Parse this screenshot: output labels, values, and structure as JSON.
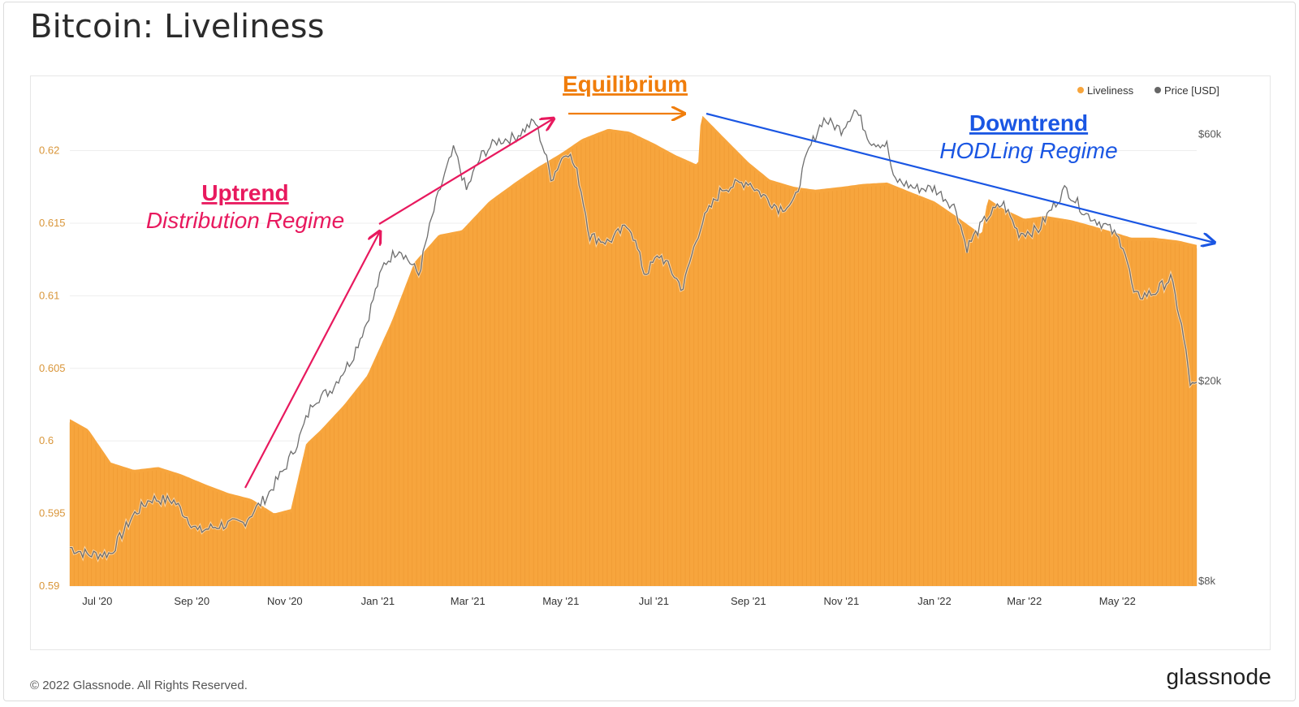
{
  "title": "Bitcoin: Liveliness",
  "footer": "© 2022 Glassnode. All Rights Reserved.",
  "brand": "glassnode",
  "watermark": "glassnode",
  "colors": {
    "liveliness": "#f7a53d",
    "price": "#8c8c8c",
    "uptrend": "#e8195e",
    "equilibrium": "#f07d0b",
    "downtrend": "#1a56e3",
    "left_axis": "#d9963a",
    "right_axis": "#555555"
  },
  "chart_data": {
    "type": "area",
    "x_tick_labels": [
      "Jul '20",
      "Sep '20",
      "Nov '20",
      "Jan '21",
      "Mar '21",
      "May '21",
      "Jul '21",
      "Sep '21",
      "Nov '21",
      "Jan '22",
      "Mar '22",
      "May '22"
    ],
    "left_axis": {
      "ticks": [
        "0.59",
        "0.595",
        "0.6",
        "0.605",
        "0.61",
        "0.615",
        "0.62"
      ],
      "range": [
        0.59,
        0.624
      ]
    },
    "right_axis": {
      "ticks": [
        "$8k",
        "$20k",
        "$60k"
      ],
      "scale": "log",
      "range": [
        8000,
        72000
      ]
    },
    "legend": {
      "position": "top-right",
      "items": [
        "Liveliness",
        "Price [USD]"
      ]
    },
    "annotations": {
      "uptrend": {
        "title": "Uptrend",
        "subtitle": "Distribution Regime"
      },
      "equilibrium": {
        "title": "Equilibrium"
      },
      "downtrend": {
        "title": "Downtrend",
        "subtitle": "HODLing Regime"
      }
    },
    "series": [
      {
        "name": "Liveliness",
        "x": [
          "2020-06-13",
          "2020-06-25",
          "2020-07-10",
          "2020-07-25",
          "2020-08-10",
          "2020-08-25",
          "2020-09-10",
          "2020-09-25",
          "2020-10-10",
          "2020-10-25",
          "2020-11-05",
          "2020-11-15",
          "2020-11-25",
          "2020-12-10",
          "2020-12-25",
          "2021-01-10",
          "2021-01-25",
          "2021-02-10",
          "2021-02-25",
          "2021-03-15",
          "2021-04-01",
          "2021-04-15",
          "2021-05-01",
          "2021-05-15",
          "2021-06-01",
          "2021-06-15",
          "2021-07-01",
          "2021-07-15",
          "2021-07-30",
          "2021-08-01",
          "2021-08-15",
          "2021-09-01",
          "2021-09-15",
          "2021-10-01",
          "2021-10-15",
          "2021-11-01",
          "2021-11-15",
          "2021-12-01",
          "2021-12-15",
          "2022-01-01",
          "2022-01-15",
          "2022-02-01",
          "2022-02-05",
          "2022-02-15",
          "2022-03-01",
          "2022-03-15",
          "2022-04-01",
          "2022-04-15",
          "2022-05-01",
          "2022-05-10",
          "2022-05-25",
          "2022-06-10",
          "2022-06-22"
        ],
        "values": [
          0.6015,
          0.6008,
          0.5985,
          0.598,
          0.5982,
          0.5977,
          0.597,
          0.5964,
          0.596,
          0.595,
          0.5953,
          0.5998,
          0.6008,
          0.6025,
          0.6045,
          0.6082,
          0.6123,
          0.6142,
          0.6145,
          0.6165,
          0.6178,
          0.6188,
          0.6198,
          0.6208,
          0.6215,
          0.6213,
          0.6205,
          0.6197,
          0.619,
          0.6225,
          0.621,
          0.6192,
          0.618,
          0.6175,
          0.6173,
          0.6175,
          0.6177,
          0.6178,
          0.6172,
          0.6165,
          0.6155,
          0.6142,
          0.6167,
          0.616,
          0.6153,
          0.6155,
          0.6152,
          0.6148,
          0.6143,
          0.614,
          0.614,
          0.6138,
          0.6135
        ]
      },
      {
        "name": "Price [USD]",
        "x": [
          "2020-06-13",
          "2020-06-25",
          "2020-07-10",
          "2020-07-25",
          "2020-08-05",
          "2020-08-20",
          "2020-09-05",
          "2020-09-20",
          "2020-10-05",
          "2020-10-20",
          "2020-11-01",
          "2020-11-10",
          "2020-11-20",
          "2020-12-01",
          "2020-12-15",
          "2020-12-25",
          "2021-01-05",
          "2021-01-15",
          "2021-01-28",
          "2021-02-10",
          "2021-02-20",
          "2021-02-28",
          "2021-03-10",
          "2021-03-20",
          "2021-04-01",
          "2021-04-14",
          "2021-04-25",
          "2021-05-05",
          "2021-05-12",
          "2021-05-20",
          "2021-06-01",
          "2021-06-15",
          "2021-06-25",
          "2021-07-05",
          "2021-07-20",
          "2021-08-01",
          "2021-08-15",
          "2021-09-01",
          "2021-09-07",
          "2021-09-21",
          "2021-10-01",
          "2021-10-10",
          "2021-10-20",
          "2021-11-01",
          "2021-11-10",
          "2021-11-20",
          "2021-12-01",
          "2021-12-05",
          "2021-12-20",
          "2022-01-01",
          "2022-01-15",
          "2022-01-22",
          "2022-02-05",
          "2022-02-15",
          "2022-02-25",
          "2022-03-10",
          "2022-03-28",
          "2022-04-10",
          "2022-04-25",
          "2022-05-05",
          "2022-05-12",
          "2022-05-25",
          "2022-06-05",
          "2022-06-12",
          "2022-06-18"
        ],
        "values": [
          9500,
          9200,
          9250,
          11000,
          11800,
          11700,
          10200,
          10500,
          10600,
          11900,
          13500,
          15300,
          18300,
          19100,
          22000,
          26000,
          33500,
          36000,
          32000,
          46000,
          56000,
          46500,
          54500,
          58000,
          59000,
          63500,
          49000,
          56000,
          50000,
          38000,
          37000,
          40000,
          32000,
          35000,
          30000,
          40000,
          47000,
          48500,
          46500,
          43000,
          44000,
          55000,
          64000,
          61000,
          67000,
          58000,
          57000,
          49000,
          47000,
          47000,
          43000,
          36000,
          41500,
          44000,
          38500,
          39000,
          47000,
          42000,
          39500,
          36500,
          29000,
          29500,
          31500,
          25500,
          19500
        ]
      }
    ]
  }
}
